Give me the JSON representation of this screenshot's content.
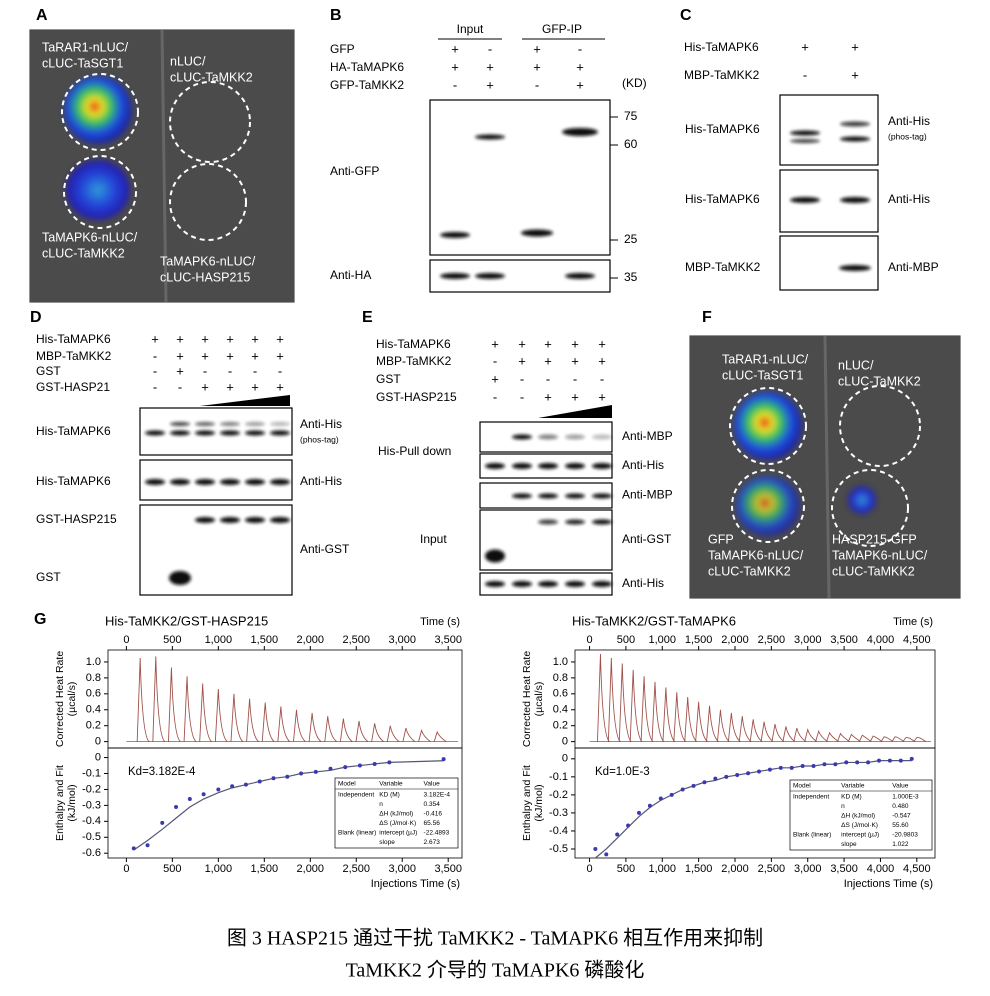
{
  "panels": {
    "A": {
      "label": "A",
      "spots": [
        {
          "lines": [
            "TaRAR1-nLUC/",
            "cLUC-TaSGT1"
          ]
        },
        {
          "lines": [
            "nLUC/",
            "cLUC-TaMKK2"
          ]
        },
        {
          "lines": [
            "TaMAPK6-nLUC/",
            "cLUC-TaMKK2"
          ]
        },
        {
          "lines": [
            "TaMAPK6-nLUC/",
            "cLUC-HASP215"
          ]
        }
      ]
    },
    "B": {
      "label": "B",
      "groups": [
        "Input",
        "GFP-IP"
      ],
      "rows": [
        {
          "name": "GFP",
          "signs": [
            "+",
            "-",
            "+",
            "-"
          ]
        },
        {
          "name": "HA-TaMAPK6",
          "signs": [
            "+",
            "+",
            "+",
            "+"
          ]
        },
        {
          "name": "GFP-TaMKK2",
          "signs": [
            "-",
            "+",
            "-",
            "+"
          ]
        }
      ],
      "unit": "(KD)",
      "blots": [
        "Anti-GFP",
        "Anti-HA"
      ],
      "markers": [
        "75",
        "60",
        "25",
        "35"
      ]
    },
    "C": {
      "label": "C",
      "rows": [
        {
          "name": "His-TaMAPK6",
          "signs": [
            "+",
            "+"
          ]
        },
        {
          "name": "MBP-TaMKK2",
          "signs": [
            "-",
            "+"
          ]
        }
      ],
      "blots": [
        {
          "left": "His-TaMAPK6",
          "right": "Anti-His",
          "note": "(phos-tag)"
        },
        {
          "left": "His-TaMAPK6",
          "right": "Anti-His"
        },
        {
          "left": "MBP-TaMKK2",
          "right": "Anti-MBP"
        }
      ]
    },
    "D": {
      "label": "D",
      "rows": [
        {
          "name": "His-TaMAPK6",
          "signs": [
            "+",
            "+",
            "+",
            "+",
            "+",
            "+"
          ]
        },
        {
          "name": "MBP-TaMKK2",
          "signs": [
            "-",
            "+",
            "+",
            "+",
            "+",
            "+"
          ]
        },
        {
          "name": "GST",
          "signs": [
            "-",
            "+",
            "-",
            "-",
            "-",
            "-"
          ]
        },
        {
          "name": "GST-HASP21",
          "signs": [
            "-",
            "-",
            "+",
            "+",
            "+",
            "+"
          ]
        }
      ],
      "blots": [
        {
          "left": "His-TaMAPK6",
          "right": "Anti-His",
          "note": "(phos-tag)"
        },
        {
          "left": "His-TaMAPK6",
          "right": "Anti-His"
        },
        {
          "left": "GST-HASP215",
          "left2": "GST",
          "right": "Anti-GST"
        }
      ]
    },
    "E": {
      "label": "E",
      "rows": [
        {
          "name": "His-TaMAPK6",
          "signs": [
            "+",
            "+",
            "+",
            "+",
            "+"
          ]
        },
        {
          "name": "MBP-TaMKK2",
          "signs": [
            "-",
            "+",
            "+",
            "+",
            "+"
          ]
        },
        {
          "name": "GST",
          "signs": [
            "+",
            "-",
            "-",
            "-",
            "-"
          ]
        },
        {
          "name": "GST-HASP215",
          "signs": [
            "-",
            "-",
            "+",
            "+",
            "+"
          ]
        }
      ],
      "sections": [
        "His-Pull down",
        "Input"
      ],
      "blots": [
        "Anti-MBP",
        "Anti-His",
        "Anti-MBP",
        "Anti-GST",
        "Anti-His"
      ]
    },
    "F": {
      "label": "F",
      "spots": [
        {
          "lines": [
            "TaRAR1-nLUC/",
            "cLUC-TaSGT1"
          ]
        },
        {
          "lines": [
            "nLUC/",
            "cLUC-TaMKK2"
          ]
        },
        {
          "lines": [
            "GFP",
            "TaMAPK6-nLUC/",
            "cLUC-TaMKK2"
          ]
        },
        {
          "lines": [
            "HASP215-GFP",
            "TaMAPK6-nLUC/",
            "cLUC-TaMKK2"
          ]
        }
      ]
    },
    "G": {
      "label": "G",
      "plots": [
        {
          "title": "His-TaMKK2/GST-HASP215",
          "time_label": "Time (s)",
          "x_label": "Injections Time (s)",
          "heat_ylabel": [
            "Corrected Heat Rate",
            "(µcal/s)"
          ],
          "fit_ylabel": [
            "Enthalpy and Fit",
            "(kJ/mol)"
          ],
          "kd": "Kd=3.182E-4",
          "xlim": [
            -200,
            3650
          ],
          "top_xticks": [
            0,
            500,
            {
              "value": 1000,
              "label": "1,000"
            },
            {
              "value": 1500,
              "label": "1,500"
            },
            {
              "value": 2000,
              "label": "2,000"
            },
            {
              "value": 2500,
              "label": "2,500"
            },
            {
              "value": 3000,
              "label": "3,000"
            },
            {
              "value": 3500,
              "label": "3,500"
            }
          ],
          "xticks": [
            0,
            500,
            {
              "value": 1000,
              "label": "1,000"
            },
            {
              "value": 1500,
              "label": "1,500"
            },
            {
              "value": 2000,
              "label": "2,000"
            },
            {
              "value": 2500,
              "label": "2,500"
            },
            {
              "value": 3000,
              "label": "3,000"
            },
            {
              "value": 3500,
              "label": "3,500"
            }
          ],
          "heat_ylim": [
            -0.08,
            1.15
          ],
          "heat_yticks": [
            0,
            0.2,
            0.4,
            0.6,
            0.8,
            {
              "value": 1,
              "label": "1.0"
            }
          ],
          "fit_ylim": [
            -0.63,
            0.06
          ],
          "fit_yticks": [
            0,
            -0.1,
            -0.2,
            -0.3,
            -0.4,
            -0.5,
            -0.6
          ],
          "heat": {
            "color": "#a0524a",
            "x": [
              150,
              320,
              490,
              660,
              830,
              1000,
              1170,
              1340,
              1510,
              1680,
              1850,
              2020,
              2190,
              2360,
              2530,
              2700,
              2870,
              3040,
              3210,
              3380
            ],
            "values": [
              1.05,
              1.07,
              0.93,
              0.82,
              0.73,
              0.66,
              0.6,
              0.54,
              0.49,
              0.44,
              0.4,
              0.36,
              0.32,
              0.29,
              0.26,
              0.23,
              0.2,
              0.17,
              0.14,
              0.12
            ]
          },
          "points": {
            "color": "#3a3ab0",
            "x": [
              80,
              230,
              390,
              540,
              690,
              840,
              1000,
              1150,
              1300,
              1450,
              1600,
              1750,
              1900,
              2060,
              2220,
              2380,
              2540,
              2700,
              2860,
              3450
            ],
            "values": [
              -0.57,
              -0.55,
              -0.41,
              -0.31,
              -0.26,
              -0.23,
              -0.2,
              -0.18,
              -0.17,
              -0.15,
              -0.13,
              -0.12,
              -0.1,
              -0.09,
              -0.07,
              -0.06,
              -0.05,
              -0.04,
              -0.03,
              -0.01
            ]
          },
          "fit": {
            "color": "#555577",
            "x": [
              80,
              230,
              390,
              540,
              690,
              840,
              1000,
              1150,
              1300,
              1450,
              1600,
              1750,
              1900,
              2060,
              2220,
              2380,
              2540,
              2700,
              2860,
              3450
            ],
            "values": [
              -0.58,
              -0.52,
              -0.45,
              -0.38,
              -0.31,
              -0.26,
              -0.22,
              -0.19,
              -0.17,
              -0.15,
              -0.13,
              -0.12,
              -0.1,
              -0.09,
              -0.08,
              -0.06,
              -0.05,
              -0.04,
              -0.03,
              -0.02
            ]
          },
          "table": {
            "header": {
              "model": "Model",
              "variable": "Variable",
              "value": "Value"
            },
            "rows": [
              {
                "model": "Independent",
                "variable": "KD (M)",
                "value": "3.182E-4"
              },
              {
                "variable": "n",
                "value": "0.354"
              },
              {
                "variable": "ΔH (kJ/mol)",
                "value": "-0.416"
              },
              {
                "variable": "ΔS (J/mol·K)",
                "value": "65.56"
              },
              {
                "model": "Blank (linear)",
                "variable": "intercept (µJ)",
                "value": "-22.4893"
              },
              {
                "variable": "slope",
                "value": "2.673"
              }
            ]
          }
        },
        {
          "title": "His-TaMKK2/GST-TaMAPK6",
          "time_label": "Time (s)",
          "x_label": "Injections Time (s)",
          "heat_ylabel": [
            "Corrected Heat Rate",
            "(µcal/s)"
          ],
          "fit_ylabel": [
            "Enthalpy and Fit",
            "(kJ/mol)"
          ],
          "kd": "Kd=1.0E-3",
          "xlim": [
            -200,
            4750
          ],
          "top_xticks": [
            0,
            500,
            {
              "value": 1000,
              "label": "1,000"
            },
            {
              "value": 1500,
              "label": "1,500"
            },
            {
              "value": 2000,
              "label": "2,000"
            },
            {
              "value": 2500,
              "label": "2,500"
            },
            {
              "value": 3000,
              "label": "3,000"
            },
            {
              "value": 3500,
              "label": "3,500"
            },
            {
              "value": 4000,
              "label": "4,000"
            },
            {
              "value": 4500,
              "label": "4,500"
            }
          ],
          "xticks": [
            0,
            500,
            {
              "value": 1000,
              "label": "1,000"
            },
            {
              "value": 1500,
              "label": "1,500"
            },
            {
              "value": 2000,
              "label": "2,000"
            },
            {
              "value": 2500,
              "label": "2,500"
            },
            {
              "value": 3000,
              "label": "3,000"
            },
            {
              "value": 3500,
              "label": "3,500"
            },
            {
              "value": 4000,
              "label": "4,000"
            },
            {
              "value": 4500,
              "label": "4,500"
            }
          ],
          "heat_ylim": [
            -0.08,
            1.15
          ],
          "heat_yticks": [
            0,
            0.2,
            0.4,
            0.6,
            0.8,
            {
              "value": 1,
              "label": "1.0"
            }
          ],
          "fit_ylim": [
            -0.55,
            0.06
          ],
          "fit_yticks": [
            0,
            -0.1,
            -0.2,
            -0.3,
            -0.4,
            -0.5
          ],
          "heat": {
            "color": "#a0524a",
            "x": [
              150,
              300,
              450,
              600,
              750,
              900,
              1050,
              1200,
              1350,
              1500,
              1650,
              1800,
              1950,
              2100,
              2250,
              2400,
              2550,
              2700,
              2850,
              3000,
              3150,
              3300,
              3450,
              3600,
              3750,
              3900,
              4050,
              4200,
              4350,
              4500
            ],
            "values": [
              1.1,
              1.05,
              0.98,
              0.9,
              0.82,
              0.75,
              0.68,
              0.62,
              0.56,
              0.5,
              0.45,
              0.4,
              0.36,
              0.32,
              0.28,
              0.25,
              0.22,
              0.19,
              0.17,
              0.15,
              0.13,
              0.11,
              0.1,
              0.09,
              0.08,
              0.07,
              0.06,
              0.06,
              0.05,
              0.05
            ]
          },
          "points": {
            "color": "#3a3ab0",
            "x": [
              80,
              230,
              380,
              530,
              680,
              830,
              980,
              1130,
              1280,
              1430,
              1580,
              1730,
              1880,
              2030,
              2180,
              2330,
              2480,
              2630,
              2780,
              2930,
              3080,
              3230,
              3380,
              3530,
              3680,
              3830,
              3980,
              4130,
              4280,
              4430
            ],
            "values": [
              -0.5,
              -0.53,
              -0.42,
              -0.37,
              -0.3,
              -0.26,
              -0.22,
              -0.2,
              -0.17,
              -0.15,
              -0.13,
              -0.11,
              -0.1,
              -0.09,
              -0.08,
              -0.07,
              -0.06,
              -0.05,
              -0.05,
              -0.04,
              -0.04,
              -0.03,
              -0.03,
              -0.02,
              -0.02,
              -0.02,
              -0.01,
              -0.01,
              -0.01,
              0
            ]
          },
          "fit": {
            "color": "#555577",
            "x": [
              80,
              230,
              380,
              530,
              680,
              830,
              980,
              1130,
              1280,
              1430,
              1580,
              1730,
              1880,
              2030,
              2180,
              2330,
              2480,
              2630,
              2780,
              2930,
              3080,
              3230,
              3380,
              3530,
              3680,
              3830,
              3980,
              4130,
              4280,
              4430
            ],
            "values": [
              -0.55,
              -0.5,
              -0.44,
              -0.38,
              -0.32,
              -0.27,
              -0.23,
              -0.2,
              -0.17,
              -0.15,
              -0.13,
              -0.12,
              -0.1,
              -0.09,
              -0.08,
              -0.07,
              -0.06,
              -0.05,
              -0.05,
              -0.04,
              -0.04,
              -0.03,
              -0.03,
              -0.02,
              -0.02,
              -0.02,
              -0.01,
              -0.01,
              -0.01,
              -0.01
            ]
          },
          "table": {
            "header": {
              "model": "Model",
              "variable": "Variable",
              "value": "Value"
            },
            "rows": [
              {
                "model": "Independent",
                "variable": "KD (M)",
                "value": "1.000E-3"
              },
              {
                "variable": "n",
                "value": "0.480"
              },
              {
                "variable": "ΔH (kJ/mol)",
                "value": "-0.547"
              },
              {
                "variable": "ΔS (J/mol·K)",
                "value": "55.60"
              },
              {
                "model": "Blank (linear)",
                "variable": "intercept (µJ)",
                "value": "-20.9803"
              },
              {
                "variable": "slope",
                "value": "1.022"
              }
            ]
          }
        }
      ]
    }
  },
  "caption": [
    "图 3 HASP215  通过干扰  TaMKK2 - TaMAPK6 相互作用来抑制",
    "TaMKK2 介导的 TaMAPK6  磷酸化"
  ]
}
